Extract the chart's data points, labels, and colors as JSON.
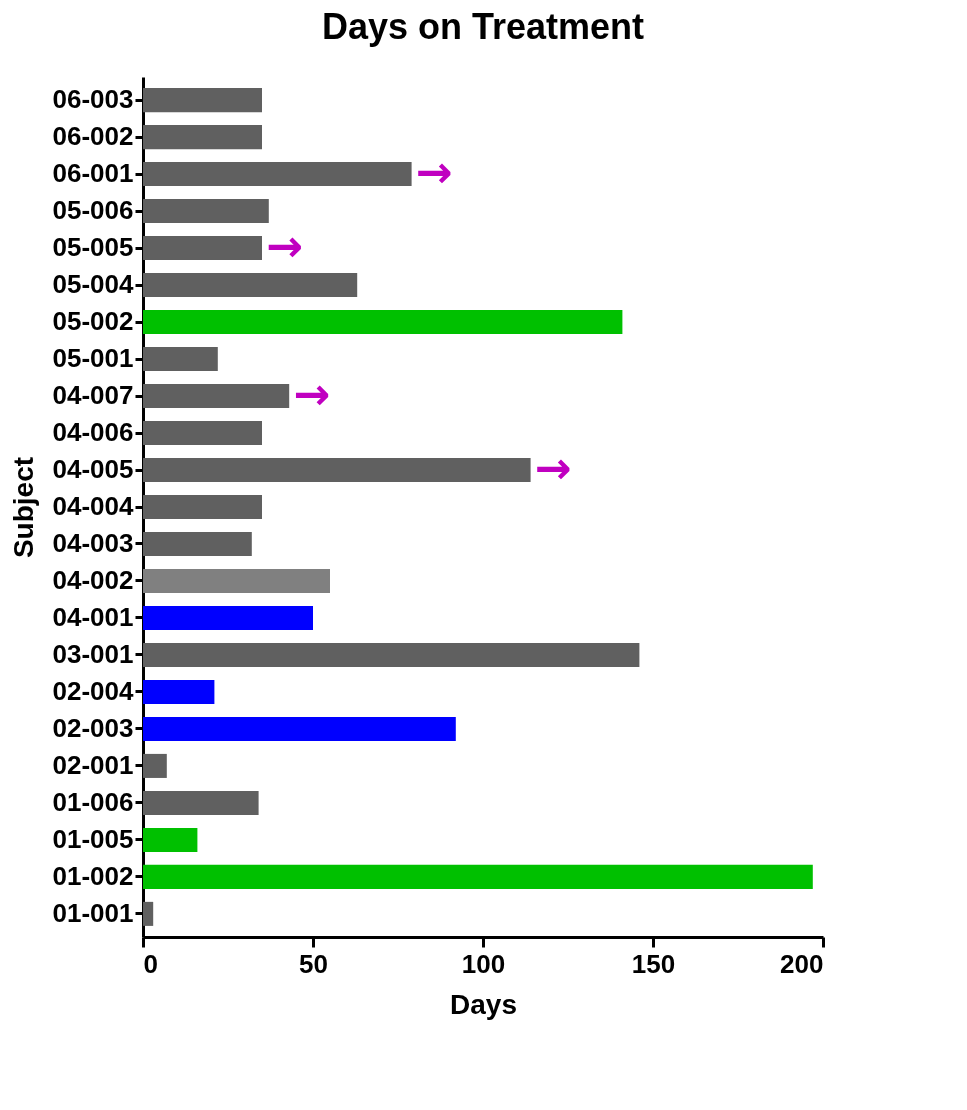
{
  "chart_data": {
    "type": "bar",
    "orientation": "horizontal",
    "title": "Days on  Treatment",
    "xlabel": "Days",
    "ylabel": "Subject",
    "categories": [
      "06-003",
      "06-002",
      "06-001",
      "05-006",
      "05-005",
      "05-004",
      "05-002",
      "05-001",
      "04-007",
      "04-006",
      "04-005",
      "04-004",
      "04-003",
      "04-002",
      "04-001",
      "03-001",
      "02-004",
      "02-003",
      "02-001",
      "01-006",
      "01-005",
      "01-002",
      "01-001"
    ],
    "values": [
      35,
      35,
      79,
      37,
      35,
      63,
      141,
      22,
      43,
      35,
      114,
      35,
      32,
      55,
      50,
      146,
      21,
      92,
      7,
      34,
      16,
      197,
      3
    ],
    "colors": [
      "#606060",
      "#606060",
      "#606060",
      "#606060",
      "#606060",
      "#606060",
      "#00c000",
      "#606060",
      "#606060",
      "#606060",
      "#606060",
      "#606060",
      "#606060",
      "#808080",
      "#0000ff",
      "#606060",
      "#0000ff",
      "#0000ff",
      "#606060",
      "#606060",
      "#00c000",
      "#00c000",
      "#606060"
    ],
    "xlim": [
      0,
      200
    ],
    "xticks": [
      0,
      50,
      100,
      150,
      200
    ],
    "grid": false,
    "legend": false,
    "annotations": [
      {
        "text": "→",
        "x": 79,
        "y": "06-001"
      },
      {
        "text": "→",
        "x": 35,
        "y": "05-005"
      },
      {
        "text": "→",
        "x": 43,
        "y": "04-007"
      },
      {
        "text": "→",
        "x": 114,
        "y": "04-005"
      }
    ]
  }
}
